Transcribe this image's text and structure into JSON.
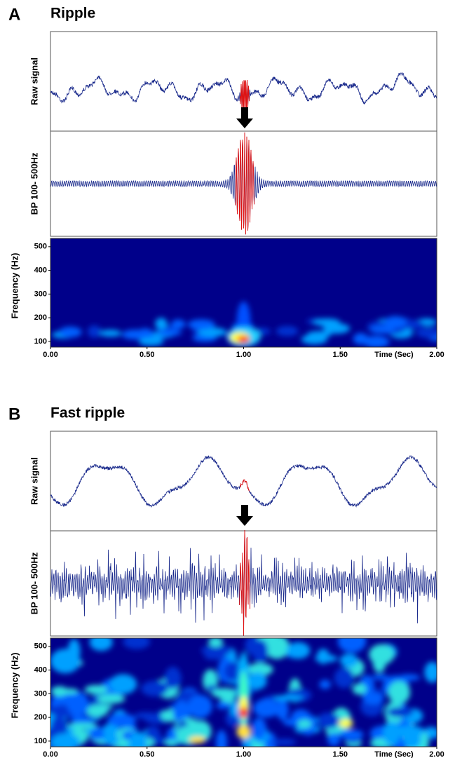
{
  "chart_data": [
    {
      "type": "spectrogram",
      "panel_label": "A",
      "title": "Ripple",
      "raw_label": "Raw signal",
      "bp_label": "BP 100- 500Hz",
      "ylabel": "Frequency (Hz)",
      "xlabel": "Time (Sec)",
      "xlim": [
        0,
        2
      ],
      "xticks": [
        {
          "value": 0,
          "label": "0.00"
        },
        {
          "value": 0.5,
          "label": "0.50"
        },
        {
          "value": 1,
          "label": "1.00"
        },
        {
          "value": 1.5,
          "label": "1.50"
        },
        {
          "value": 2,
          "label": "2.00"
        }
      ],
      "ylim": [
        76,
        535
      ],
      "yticks": [
        100,
        200,
        300,
        400,
        500
      ]
    },
    {
      "type": "spectrogram",
      "panel_label": "B",
      "title": "Fast ripple",
      "raw_label": "Raw signal",
      "bp_label": "BP 100- 500Hz",
      "ylabel": "Frequency (Hz)",
      "xlabel": "Time (Sec)",
      "xlim": [
        0,
        2
      ],
      "xticks": [
        {
          "value": 0,
          "label": "0.00"
        },
        {
          "value": 0.5,
          "label": "0.50"
        },
        {
          "value": 1,
          "label": "1.00"
        },
        {
          "value": 1.5,
          "label": "1.50"
        },
        {
          "value": 2,
          "label": "2.00"
        }
      ],
      "ylim": [
        76,
        535
      ],
      "yticks": [
        100,
        200,
        300,
        400,
        500
      ]
    }
  ]
}
